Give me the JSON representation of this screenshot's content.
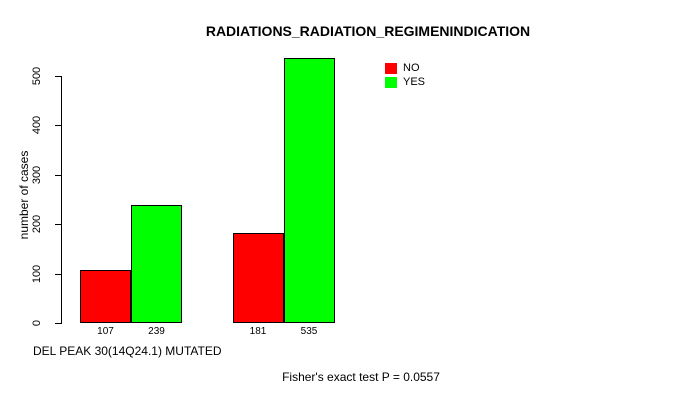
{
  "chart_data": {
    "type": "bar",
    "title": "RADIATIONS_RADIATION_REGIMENINDICATION",
    "ylabel": "number of cases",
    "xlabel": "DEL PEAK 30(14Q24.1) MUTATED",
    "ylim": [
      0,
      535
    ],
    "yticks": [
      0,
      100,
      200,
      300,
      400,
      500
    ],
    "grid": false,
    "legend_position": "inside-top-right",
    "series": [
      {
        "name": "NO",
        "color": "#ff0000",
        "values": [
          107,
          181
        ]
      },
      {
        "name": "YES",
        "color": "#00ff00",
        "values": [
          239,
          535
        ]
      }
    ],
    "bar_value_labels": [
      "107",
      "239",
      "181",
      "535"
    ],
    "annotation": "Fisher's exact test P = 0.0557"
  }
}
